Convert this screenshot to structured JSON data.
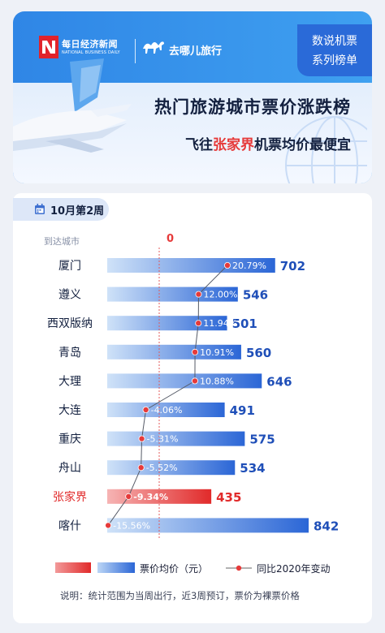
{
  "header": {
    "logo_cn": "每日经济新闻",
    "logo_en": "NATIONAL BUSINESS DAILY",
    "partner": "去哪儿旅行",
    "tag_line1": "数说机票",
    "tag_line2": "系列榜单",
    "title": "热门旅游城市票价涨跌榜",
    "subtitle_pre": "飞往",
    "subtitle_highlight": "张家界",
    "subtitle_post": "机票均价最便宜"
  },
  "panel": {
    "week": "10月第2周",
    "city_header": "到达城市",
    "zero_label": "0"
  },
  "legend": {
    "price": "票价均价（元）",
    "yoy": "同比2020年变动"
  },
  "note": "说明：统计范围为当周出行，近3周预订，票价为裸票价格",
  "colors": {
    "brand_blue": "#2f86e6",
    "bar_blue": "#2b66d6",
    "bar_red": "#e12a2a",
    "accent_red": "#e63a3a"
  },
  "chart_data": {
    "type": "bar",
    "categories": [
      "厦门",
      "遵义",
      "西双版纳",
      "青岛",
      "大理",
      "大连",
      "重庆",
      "舟山",
      "张家界",
      "喀什"
    ],
    "series": [
      {
        "name": "票价均价（元）",
        "values": [
          702,
          546,
          501,
          560,
          646,
          491,
          575,
          534,
          435,
          842
        ]
      },
      {
        "name": "同比2020年变动",
        "values": [
          20.79,
          12.0,
          11.94,
          10.91,
          10.88,
          -4.06,
          -5.31,
          -5.52,
          -9.34,
          -15.56
        ],
        "labels": [
          "20.79%",
          "12.00%",
          "11.94%",
          "10.91%",
          "10.88%",
          "-4.06%",
          "-5.31%",
          "-5.52%",
          "-9.34%",
          "-15.56%"
        ]
      }
    ],
    "highlight": "张家界"
  }
}
